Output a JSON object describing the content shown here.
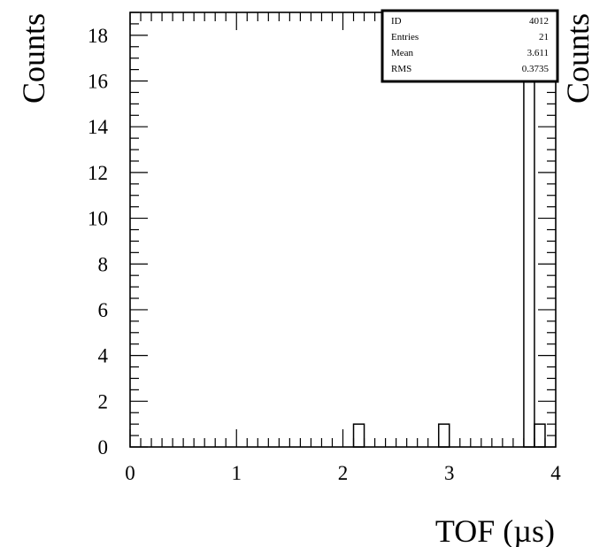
{
  "chart_data": {
    "type": "bar",
    "xlabel": "TOF (µs)",
    "ylabel": "Counts",
    "xlim": [
      0,
      4
    ],
    "ylim": [
      0,
      19
    ],
    "x_ticks": [
      "0",
      "1",
      "2",
      "3",
      "4"
    ],
    "y_ticks": [
      "0",
      "2",
      "4",
      "6",
      "8",
      "10",
      "12",
      "14",
      "16",
      "18"
    ],
    "bins": [
      {
        "x_start": 2.1,
        "x_end": 2.2,
        "value": 1
      },
      {
        "x_start": 2.9,
        "x_end": 3.0,
        "value": 1
      },
      {
        "x_start": 3.7,
        "x_end": 3.8,
        "value": 17
      },
      {
        "x_start": 3.8,
        "x_end": 3.9,
        "value": 1
      }
    ],
    "stats": [
      {
        "label": "ID",
        "value": "4012"
      },
      {
        "label": "Entries",
        "value": "21"
      },
      {
        "label": "Mean",
        "value": "3.611"
      },
      {
        "label": "RMS",
        "value": "0.3735"
      }
    ],
    "edge_label": "Counts"
  }
}
